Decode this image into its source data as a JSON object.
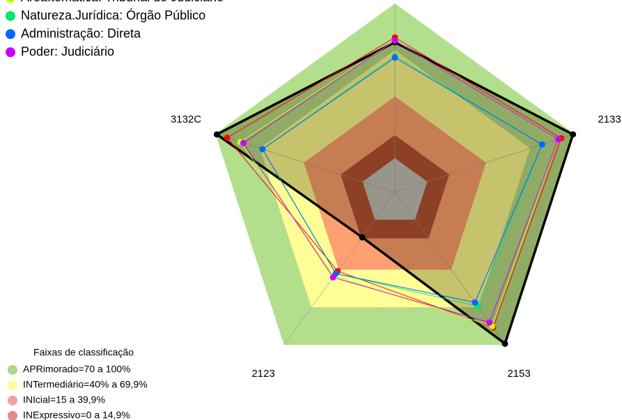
{
  "chart_data": {
    "type": "radar",
    "categories": [
      null,
      "2133",
      "2153",
      "2123",
      "3132C"
    ],
    "rlim": [
      -22,
      100
    ],
    "bands_title": "Faixas de classificação",
    "bands": [
      {
        "label": "APRimorado=70 a 100%",
        "range": [
          70,
          100
        ],
        "color": "#b3de8c"
      },
      {
        "label": "INTermediário=40% a 69,9%",
        "range": [
          40,
          69.9
        ],
        "color": "#ffff96"
      },
      {
        "label": "INIcial=15 a 39,9%",
        "range": [
          15,
          39.9
        ],
        "color": "#ff9f72"
      },
      {
        "label": "INExpressivo=0 a 14,9%",
        "range": [
          0,
          14.9
        ],
        "color": "#b04a34"
      }
    ],
    "band_legend_colors": [
      "#a8d88a",
      "#ffff99",
      "#f4a0a0",
      "#e08a8a"
    ],
    "series": [
      {
        "color": "#000000",
        "values": [
          75,
          99,
          99,
          14,
          99
        ],
        "filled": true
      },
      {
        "color": "#ff0000",
        "values": [
          78,
          91,
          86,
          41,
          92
        ]
      },
      {
        "name": "Área.temática: Tribunal do Judiciário",
        "color": "#ccff00",
        "values": [
          76,
          89,
          85,
          45,
          83
        ]
      },
      {
        "name": "Natureza.Jurídica: Órgão Público",
        "color": "#00e676",
        "values": [
          66,
          78,
          69,
          43,
          68
        ]
      },
      {
        "name": "Administração: Direta",
        "color": "#0066ff",
        "values": [
          65,
          78,
          66,
          43,
          68
        ]
      },
      {
        "name": "Poder: Judiciário",
        "color": "#cc00ff",
        "values": [
          76,
          89,
          82,
          46,
          81
        ]
      }
    ]
  }
}
